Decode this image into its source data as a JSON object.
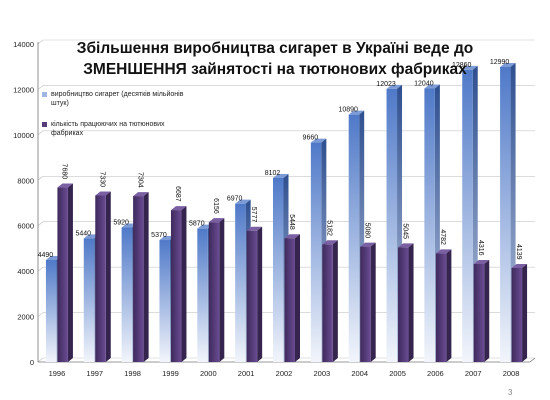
{
  "chart_data": {
    "type": "bar",
    "title": "Збільшення виробництва сигарет в Україні веде до ЗМЕНШЕННЯ зайнятості на тютюнових фабриках",
    "title_line1": "Збільшення виробництва сигарет в Україні веде до",
    "title_line2": "ЗМЕНШЕННЯ зайнятості на тютюнових фабриках",
    "categories": [
      "1996",
      "1997",
      "1998",
      "1999",
      "2000",
      "2001",
      "2002",
      "2003",
      "2004",
      "2005",
      "2006",
      "2007",
      "2008"
    ],
    "series": [
      {
        "name": "виробництво сигарет (десятків мільйонів штук)",
        "name_line1": "виробництво сигарет (десятків мільйонів",
        "name_line2": "штук)",
        "values": [
          4490,
          5440,
          5920,
          5370,
          5870,
          6970,
          8102,
          9660,
          10890,
          12023,
          12040,
          12860,
          12990
        ],
        "color_top": "#4f79c8",
        "color_bottom": "#f2f5fb"
      },
      {
        "name": "кількість працюючих на тютюнових фабриках",
        "name_line1": "кількість працюючих на тютюнових",
        "name_line2": "фабриках",
        "values": [
          7680,
          7330,
          7304,
          6687,
          6156,
          5777,
          5448,
          5182,
          5080,
          5045,
          4782,
          4316,
          4139
        ],
        "color": "#553d77"
      }
    ],
    "ylim": [
      0,
      14000
    ],
    "yticks": [
      0,
      2000,
      4000,
      6000,
      8000,
      10000,
      12000,
      14000
    ],
    "grid": true,
    "legend_position": "top-left"
  },
  "slide": {
    "page_number": "3"
  }
}
